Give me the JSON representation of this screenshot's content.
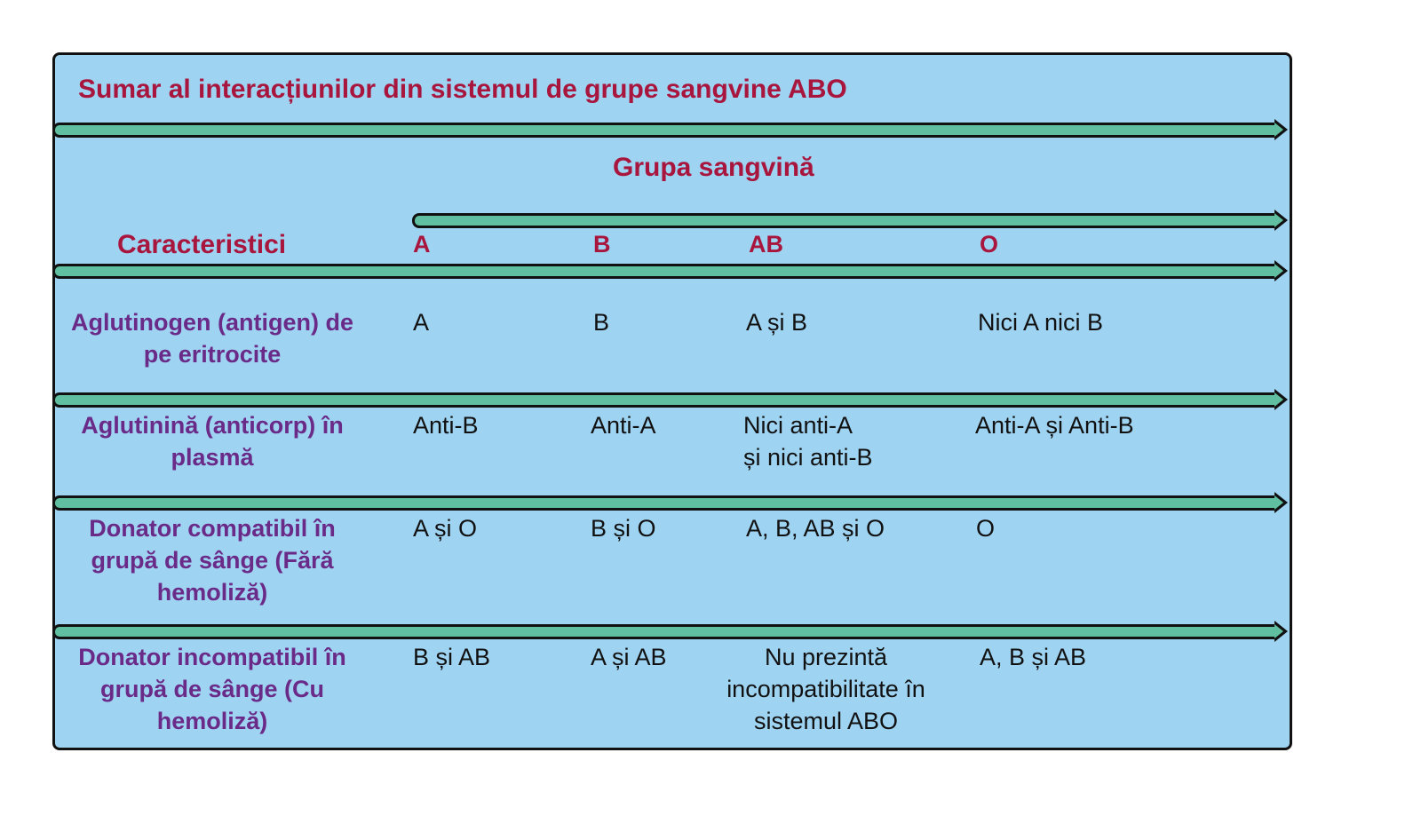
{
  "title": "Sumar al interacțiunilor din sistemul de grupe sangvine ABO",
  "group_header": "Grupa sangvină",
  "characteristics_header": "Caracteristici",
  "columns": [
    "A",
    "B",
    "AB",
    "O"
  ],
  "rows": [
    {
      "label": "Aglutinogen (antigen) de pe eritrocite",
      "cells": [
        "A",
        "B",
        "A și B",
        "Nici A nici B"
      ]
    },
    {
      "label": "Aglutinină (anticorp) în plasmă",
      "cells": [
        "Anti-B",
        "Anti-A",
        "Nici anti-A\nși nici anti-B",
        "Anti-A și Anti-B"
      ]
    },
    {
      "label": "Donator compatibil în grupă de sânge (Fără hemoliză)",
      "cells": [
        "A și O",
        "B și O",
        "A, B, AB și O",
        "O"
      ]
    },
    {
      "label": "Donator incompatibil în grupă de sânge (Cu hemoliză)",
      "cells": [
        "B și AB",
        "A și AB",
        "Nu prezintă\nincompatibilitate în\nsistemul ABO",
        "A, B și AB"
      ]
    }
  ],
  "colors": {
    "panel_background": "#9fd3f2",
    "arrow_fill": "#5fbfa0",
    "header_text": "#a8153d",
    "row_label_text": "#6a2a87"
  }
}
